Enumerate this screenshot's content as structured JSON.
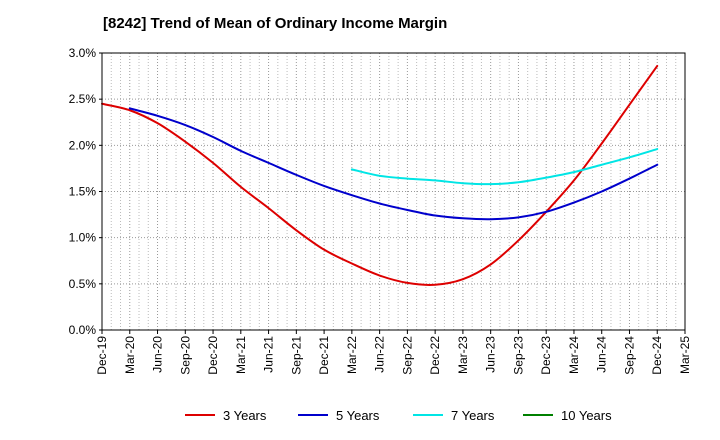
{
  "chart_data": {
    "type": "line",
    "title": "[8242]  Trend of Mean of Ordinary Income Margin",
    "x_tick_labels": [
      "Dec-19",
      "Mar-20",
      "Jun-20",
      "Sep-20",
      "Dec-20",
      "Mar-21",
      "Jun-21",
      "Sep-21",
      "Dec-21",
      "Mar-22",
      "Jun-22",
      "Sep-22",
      "Dec-22",
      "Mar-23",
      "Jun-23",
      "Sep-23",
      "Dec-23",
      "Mar-24",
      "Jun-24",
      "Sep-24",
      "Dec-24",
      "Mar-25"
    ],
    "y_tick_labels": [
      "0.0%",
      "0.5%",
      "1.0%",
      "1.5%",
      "2.0%",
      "2.5%",
      "3.0%"
    ],
    "ylim": [
      0,
      3.0
    ],
    "y_unit": "%",
    "grid": true,
    "legend_position": "bottom",
    "series": [
      {
        "name": "3 Years",
        "color": "#dd0000",
        "x": [
          "Dec-19",
          "Mar-20",
          "Jun-20",
          "Sep-20",
          "Dec-20",
          "Mar-21",
          "Jun-21",
          "Sep-21",
          "Dec-21",
          "Mar-22",
          "Jun-22",
          "Sep-22",
          "Dec-22",
          "Mar-23",
          "Jun-23",
          "Sep-23",
          "Dec-23",
          "Mar-24",
          "Jun-24",
          "Sep-24",
          "Dec-24"
        ],
        "values": [
          2.45,
          2.38,
          2.24,
          2.04,
          1.81,
          1.55,
          1.32,
          1.08,
          0.87,
          0.72,
          0.59,
          0.51,
          0.49,
          0.55,
          0.71,
          0.97,
          1.28,
          1.62,
          2.02,
          2.44,
          2.86
        ]
      },
      {
        "name": "5 Years",
        "color": "#0000cc",
        "x": [
          "Mar-20",
          "Jun-20",
          "Sep-20",
          "Dec-20",
          "Mar-21",
          "Jun-21",
          "Sep-21",
          "Dec-21",
          "Mar-22",
          "Jun-22",
          "Sep-22",
          "Dec-22",
          "Mar-23",
          "Jun-23",
          "Sep-23",
          "Dec-23",
          "Mar-24",
          "Jun-24",
          "Sep-24",
          "Dec-24"
        ],
        "values": [
          2.4,
          2.32,
          2.22,
          2.09,
          1.94,
          1.81,
          1.68,
          1.56,
          1.46,
          1.37,
          1.3,
          1.24,
          1.21,
          1.2,
          1.22,
          1.28,
          1.38,
          1.5,
          1.64,
          1.79
        ]
      },
      {
        "name": "7 Years",
        "color": "#00e5e5",
        "x": [
          "Mar-22",
          "Jun-22",
          "Sep-22",
          "Dec-22",
          "Mar-23",
          "Jun-23",
          "Sep-23",
          "Dec-23",
          "Mar-24",
          "Jun-24",
          "Sep-24",
          "Dec-24"
        ],
        "values": [
          1.74,
          1.67,
          1.64,
          1.62,
          1.59,
          1.58,
          1.6,
          1.65,
          1.71,
          1.79,
          1.87,
          1.96
        ]
      },
      {
        "name": "10 Years",
        "color": "#008000",
        "x": [],
        "values": []
      }
    ]
  }
}
